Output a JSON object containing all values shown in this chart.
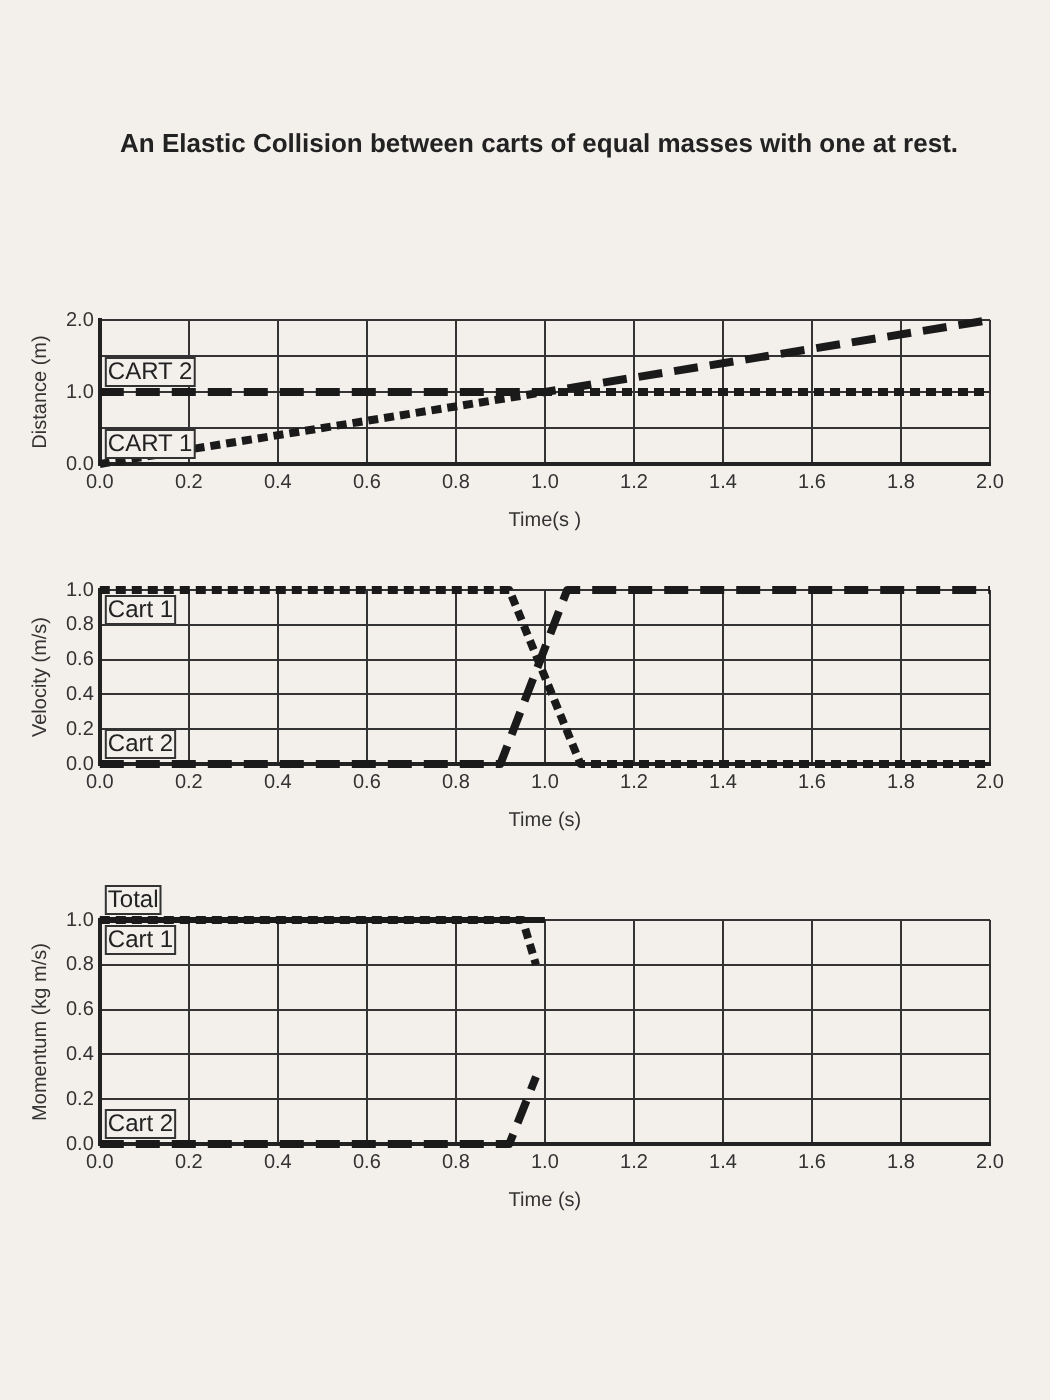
{
  "chart_data": [
    {
      "type": "line",
      "title": "An Elastic Collision between carts of equal masses with one at rest.",
      "xlabel": "Time(s )",
      "ylabel": "Distance (m)",
      "xlim": [
        0,
        2
      ],
      "xticks": [
        {
          "value": 0,
          "label": "0.0"
        },
        0.2,
        0.4,
        0.6,
        0.8,
        {
          "value": 1,
          "label": "1.0"
        },
        1.2,
        1.4,
        1.6,
        1.8,
        {
          "value": 2,
          "label": "2.0"
        }
      ],
      "ylim": [
        0,
        2
      ],
      "yticks": [
        {
          "value": 0,
          "label": "0.0"
        },
        {
          "value": 0.5,
          "label": null
        },
        {
          "value": 1,
          "label": "1.0"
        },
        {
          "value": 1.5,
          "label": null
        },
        {
          "value": 2,
          "label": "2.0"
        }
      ],
      "grid": true,
      "legend": false,
      "marker": "none",
      "series": [
        {
          "name": "CART 1",
          "color": "#1a1a1a",
          "line_style": "dotted",
          "x": [
            0,
            1,
            2
          ],
          "values": [
            0,
            1,
            1
          ]
        },
        {
          "name": "CART 2",
          "color": "#1a1a1a",
          "line_style": "dashed",
          "x": [
            0,
            1,
            2
          ],
          "values": [
            1,
            1,
            2
          ]
        }
      ]
    },
    {
      "type": "line",
      "xlabel": "Time (s)",
      "ylabel": "Velocity (m/s)",
      "xlim": [
        0,
        2
      ],
      "xticks": [
        {
          "value": 0,
          "label": "0.0"
        },
        0.2,
        0.4,
        0.6,
        0.8,
        {
          "value": 1,
          "label": "1.0"
        },
        1.2,
        1.4,
        1.6,
        1.8,
        {
          "value": 2,
          "label": "2.0"
        }
      ],
      "ylim": [
        0,
        1
      ],
      "yticks": [
        {
          "value": 0,
          "label": "0.0"
        },
        0.2,
        0.4,
        0.6,
        0.8,
        {
          "value": 1,
          "label": "1.0"
        }
      ],
      "grid": true,
      "legend": false,
      "marker": "none",
      "series": [
        {
          "name": "Cart 1",
          "color": "#1a1a1a",
          "line_style": "dotted",
          "x": [
            0,
            0.92,
            1.08,
            2
          ],
          "values": [
            1,
            1,
            0,
            0
          ]
        },
        {
          "name": "Cart 2",
          "color": "#1a1a1a",
          "line_style": "dashed",
          "x": [
            0,
            0.9,
            1.05,
            2
          ],
          "values": [
            0,
            0,
            1,
            1
          ]
        }
      ]
    },
    {
      "type": "line",
      "xlabel": "Time (s)",
      "ylabel": "Momentum (kg m/s)",
      "xlim": [
        0,
        2
      ],
      "xticks": [
        {
          "value": 0,
          "label": "0.0"
        },
        0.2,
        0.4,
        0.6,
        0.8,
        {
          "value": 1,
          "label": "1.0"
        },
        1.2,
        1.4,
        1.6,
        1.8,
        {
          "value": 2,
          "label": "2.0"
        }
      ],
      "ylim": [
        0,
        1
      ],
      "yticks": [
        {
          "value": 0,
          "label": "0.0"
        },
        0.2,
        0.4,
        0.6,
        0.8,
        {
          "value": 1,
          "label": "1.0"
        }
      ],
      "grid": true,
      "legend": false,
      "marker": "none",
      "series": [
        {
          "name": "Cart 1",
          "color": "#1a1a1a",
          "line_style": "dotted",
          "x": [
            0,
            0.95,
            0.98
          ],
          "values": [
            1,
            1,
            0.8
          ]
        },
        {
          "name": "Cart 2",
          "color": "#1a1a1a",
          "line_style": "dashed",
          "x": [
            0,
            0.92,
            0.98
          ],
          "values": [
            0,
            0,
            0.3
          ]
        },
        {
          "name": "Total",
          "color": "#1a1a1a",
          "line_style": "solid",
          "x": [
            0,
            1
          ],
          "values": [
            1,
            1
          ]
        }
      ]
    }
  ]
}
